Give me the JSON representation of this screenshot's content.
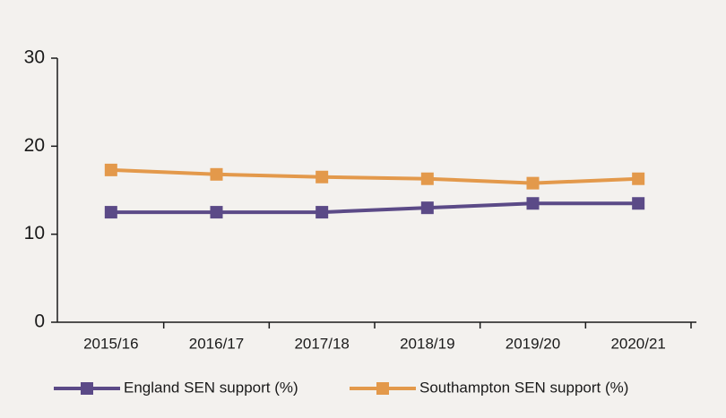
{
  "chart_data": {
    "type": "line",
    "categories": [
      "2015/16",
      "2016/17",
      "2017/18",
      "2018/19",
      "2019/20",
      "2020/21"
    ],
    "series": [
      {
        "name": "England SEN support (%)",
        "color": "#5b4a87",
        "values": [
          12.5,
          12.5,
          12.5,
          13.0,
          13.5,
          13.5
        ]
      },
      {
        "name": "Southampton SEN support (%)",
        "color": "#e3994b",
        "values": [
          17.3,
          16.8,
          16.5,
          16.3,
          15.8,
          16.3
        ]
      }
    ],
    "ylim": [
      0,
      30
    ],
    "yticks": [
      0,
      10,
      20,
      30
    ],
    "grid": false,
    "legend": "bottom"
  }
}
